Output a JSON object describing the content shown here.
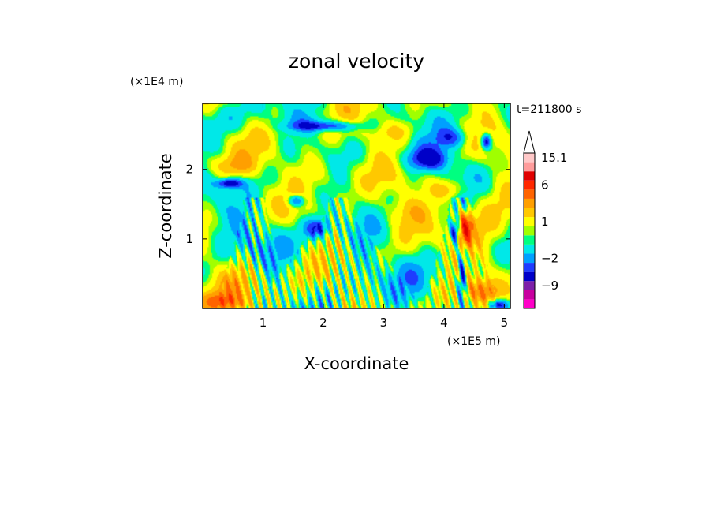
{
  "chart_data": {
    "type": "heatmap",
    "title": "zonal velocity",
    "xlabel": "X-coordinate",
    "ylabel": "Z-coordinate",
    "x_scale_label": "(×1E5 m)",
    "y_scale_label": "(×1E4 m)",
    "time_label": "t=211800 s",
    "xlim": [
      0,
      5.1
    ],
    "ylim": [
      0,
      2.95
    ],
    "x_ticks": [
      {
        "value": 1,
        "label": "1"
      },
      {
        "value": 2,
        "label": "2"
      },
      {
        "value": 3,
        "label": "3"
      },
      {
        "value": 4,
        "label": "4"
      },
      {
        "value": 5,
        "label": "5"
      }
    ],
    "y_ticks": [
      {
        "value": 1,
        "label": "1"
      },
      {
        "value": 2,
        "label": "2"
      }
    ],
    "colorbar": {
      "levels": [
        {
          "value": -15,
          "color": "#ff00c8"
        },
        {
          "value": -12,
          "color": "#c8009f"
        },
        {
          "value": -9,
          "color": "#7d1fa8"
        },
        {
          "value": -6,
          "color": "#0000c8"
        },
        {
          "value": -3,
          "color": "#1e3cff"
        },
        {
          "value": -2,
          "color": "#00a0ff"
        },
        {
          "value": -1,
          "color": "#00e8e8"
        },
        {
          "value": 0,
          "color": "#00ff80"
        },
        {
          "value": 0.5,
          "color": "#a0ff00"
        },
        {
          "value": 1,
          "color": "#ffff00"
        },
        {
          "value": 2,
          "color": "#ffc800"
        },
        {
          "value": 3,
          "color": "#ff9f00"
        },
        {
          "value": 4.5,
          "color": "#ff6400"
        },
        {
          "value": 6,
          "color": "#ff2800"
        },
        {
          "value": 9,
          "color": "#e00000"
        },
        {
          "value": 12,
          "color": "#ff9c9c"
        },
        {
          "value": 15.1,
          "color": "#ffc8c8"
        }
      ],
      "labels": [
        {
          "value": 15.1,
          "label": "15.1"
        },
        {
          "value": 6,
          "label": "6"
        },
        {
          "value": 1,
          "label": "1"
        },
        {
          "value": -2,
          "label": "−2"
        },
        {
          "value": -9,
          "label": "−9"
        }
      ],
      "extend": "max"
    },
    "features": [
      {
        "x": 2.05,
        "z": 2.62,
        "sx": 0.4,
        "sz": 0.05,
        "amp": -3.5
      },
      {
        "x": 1.95,
        "z": 2.68,
        "sx": 0.45,
        "sz": 0.09,
        "amp": -1.2
      },
      {
        "x": 3.75,
        "z": 2.15,
        "sx": 0.28,
        "sz": 0.12,
        "amp": -4.5
      },
      {
        "x": 4.15,
        "z": 2.45,
        "sx": 0.2,
        "sz": 0.1,
        "amp": -3.0
      },
      {
        "x": 4.7,
        "z": 2.4,
        "sx": 0.06,
        "sz": 0.08,
        "amp": -5.0
      },
      {
        "x": 0.45,
        "z": 1.8,
        "sx": 0.15,
        "sz": 0.05,
        "amp": -4.5
      },
      {
        "x": 1.55,
        "z": 1.55,
        "sx": 0.1,
        "sz": 0.06,
        "amp": -4.0
      },
      {
        "x": 0.95,
        "z": 1.05,
        "sx": 0.55,
        "sz": 0.3,
        "amp": -1.3
      },
      {
        "x": 0.3,
        "z": 2.75,
        "sx": 0.35,
        "sz": 0.18,
        "amp": -1.0
      },
      {
        "x": 1.9,
        "z": 1.15,
        "sx": 0.14,
        "sz": 0.1,
        "amp": -3.5
      },
      {
        "x": 4.2,
        "z": 1.1,
        "sx": 0.06,
        "sz": 0.12,
        "amp": -5.0
      },
      {
        "x": 4.3,
        "z": 0.45,
        "sx": 0.05,
        "sz": 0.25,
        "amp": -5.0
      },
      {
        "x": 4.9,
        "z": 0.05,
        "sx": 0.12,
        "sz": 0.06,
        "amp": -5.0
      },
      {
        "x": 4.35,
        "z": 1.15,
        "sx": 0.08,
        "sz": 0.15,
        "amp": 7.0
      },
      {
        "x": 4.7,
        "z": 0.95,
        "sx": 0.3,
        "sz": 0.4,
        "amp": 2.0
      },
      {
        "x": 0.65,
        "z": 0.4,
        "sx": 0.28,
        "sz": 0.25,
        "amp": 2.0
      },
      {
        "x": 1.9,
        "z": 2.0,
        "sx": 0.3,
        "sz": 0.18,
        "amp": 1.5
      },
      {
        "x": 0.5,
        "z": 2.05,
        "sx": 0.3,
        "sz": 0.1,
        "amp": 1.8
      },
      {
        "x": 4.1,
        "z": 1.7,
        "sx": 0.22,
        "sz": 0.1,
        "amp": 2.5
      },
      {
        "x": 3.2,
        "z": 2.55,
        "sx": 0.3,
        "sz": 0.1,
        "amp": 1.6
      },
      {
        "x": 2.7,
        "z": 0.55,
        "sx": 0.2,
        "sz": 0.3,
        "amp": -1.0
      },
      {
        "x": 3.6,
        "z": 0.55,
        "sx": 0.35,
        "sz": 0.35,
        "amp": -0.8
      },
      {
        "x": 3.35,
        "z": 1.4,
        "sx": 0.3,
        "sz": 0.15,
        "amp": 1.5
      },
      {
        "x": 4.65,
        "z": 0.25,
        "sx": 0.18,
        "sz": 0.12,
        "amp": 3.0
      },
      {
        "x": 0.3,
        "z": 0.1,
        "sx": 0.25,
        "sz": 0.08,
        "amp": 3.0
      }
    ]
  }
}
